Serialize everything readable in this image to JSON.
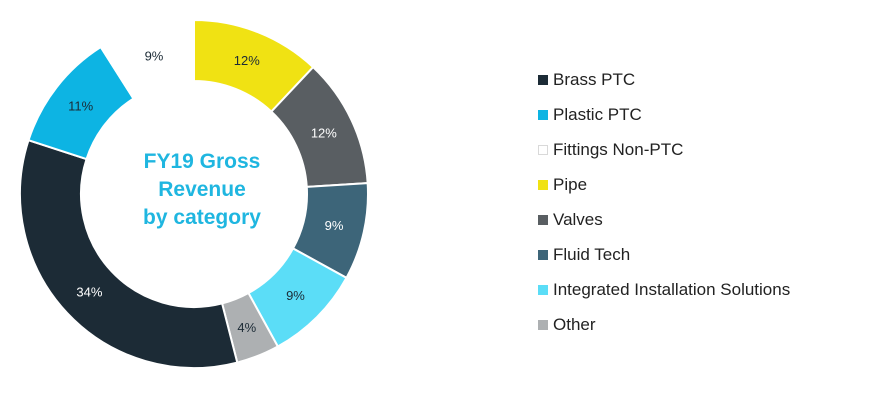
{
  "chart_data": {
    "type": "pie",
    "variant": "donut",
    "title_lines": [
      "FY19 Gross",
      "Revenue",
      "by category"
    ],
    "slices": [
      {
        "name": "Brass PTC",
        "value": 34,
        "label": "34%",
        "color": "#1c2b36",
        "label_color": "#ffffff"
      },
      {
        "name": "Plastic PTC",
        "value": 11,
        "label": "11%",
        "color": "#0db4e3",
        "label_color": "#1c2b36"
      },
      {
        "name": "Fittings Non-PTC",
        "value": 9,
        "label": "9%",
        "color": "#ffffff",
        "label_color": "#1c2b36"
      },
      {
        "name": "Pipe",
        "value": 12,
        "label": "12%",
        "color": "#f0e213",
        "label_color": "#1c2b36"
      },
      {
        "name": "Valves",
        "value": 12,
        "label": "12%",
        "color": "#595e62",
        "label_color": "#ffffff"
      },
      {
        "name": "Fluid Tech",
        "value": 9,
        "label": "9%",
        "color": "#3d6579",
        "label_color": "#ffffff"
      },
      {
        "name": "Integrated Installation Solutions",
        "value": 9,
        "label": "9%",
        "color": "#5bddf7",
        "label_color": "#1c2b36"
      },
      {
        "name": "Other",
        "value": 4,
        "label": "4%",
        "color": "#adb0b2",
        "label_color": "#1c2b36"
      }
    ],
    "legend_position": "right",
    "slice_order": [
      "Pipe",
      "Valves",
      "Fluid Tech",
      "Integrated Installation Solutions",
      "Other",
      "Brass PTC",
      "Plastic PTC",
      "Fittings Non-PTC"
    ],
    "border_color": "#d9d9d9"
  }
}
